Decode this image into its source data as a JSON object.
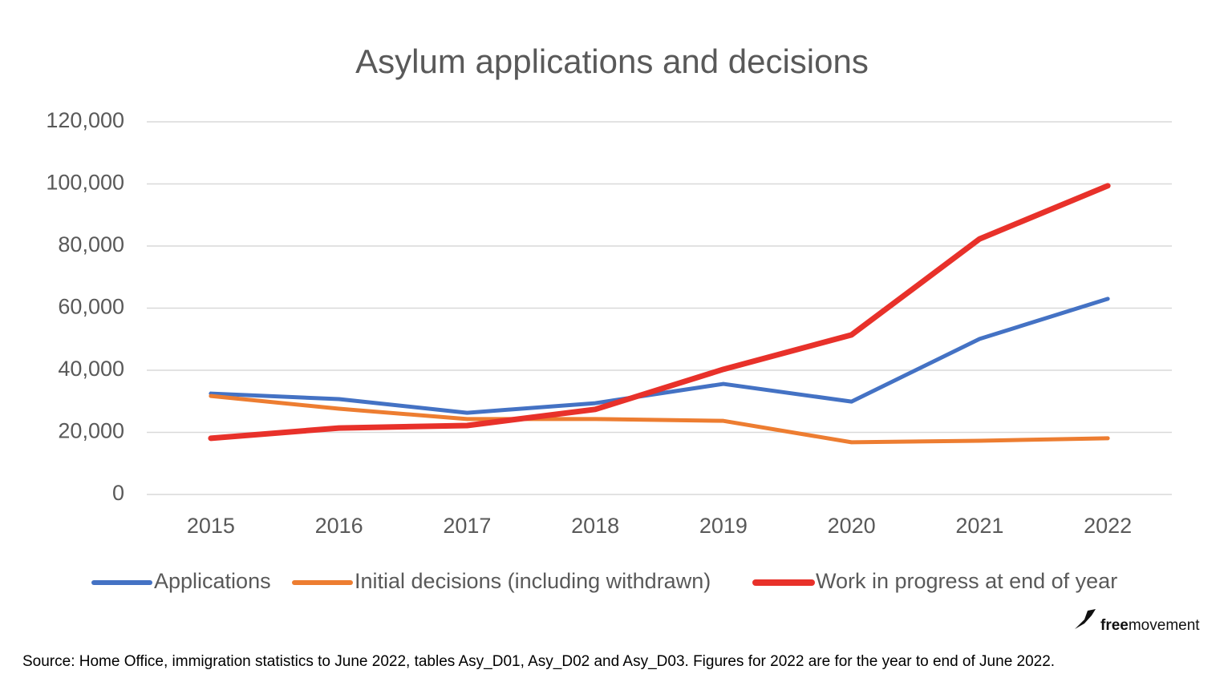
{
  "chart_data": {
    "type": "line",
    "title": "Asylum applications and decisions",
    "categories": [
      "2015",
      "2016",
      "2017",
      "2018",
      "2019",
      "2020",
      "2021",
      "2022"
    ],
    "series": [
      {
        "name": "Applications",
        "color": "#4472c4",
        "values": [
          32500,
          30700,
          26300,
          29400,
          35600,
          29900,
          50100,
          63000
        ]
      },
      {
        "name": "Initial decisions (including withdrawn)",
        "color": "#ed7d31",
        "values": [
          31700,
          27600,
          24300,
          24300,
          23700,
          16800,
          17300,
          18100
        ]
      },
      {
        "name": "Work in progress at end of year",
        "color": "#e8312a",
        "values": [
          18100,
          21400,
          22200,
          27400,
          40300,
          51400,
          82300,
          99400
        ]
      }
    ],
    "ylim": [
      0,
      120000
    ],
    "yticks": [
      0,
      {
        "value": 20000,
        "label": "20,000"
      },
      {
        "value": 40000,
        "label": "40,000"
      },
      {
        "value": 60000,
        "label": "60,000"
      },
      {
        "value": 80000,
        "label": "80,000"
      },
      {
        "value": 100000,
        "label": "100,000"
      },
      {
        "value": 120000,
        "label": "120,000"
      }
    ],
    "grid": true,
    "legend": "bottom"
  },
  "source": "Source: Home Office, immigration statistics to June 2022, tables Asy_D01, Asy_D02 and Asy_D03. Figures for 2022 are for the year to end of June 2022.",
  "logo": {
    "bold": "free",
    "regular": "movement"
  }
}
